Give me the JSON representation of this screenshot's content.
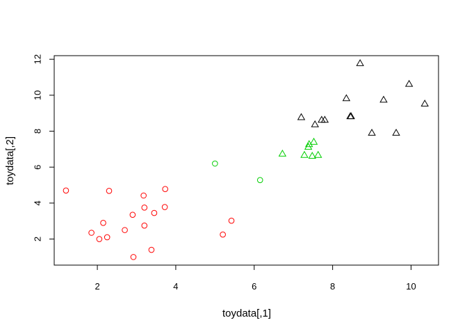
{
  "chart_data": {
    "type": "scatter",
    "title": "",
    "xlabel": "toydata[,1]",
    "ylabel": "toydata[,2]",
    "xlim": [
      0.9,
      10.7
    ],
    "ylim": [
      0.55,
      12.2
    ],
    "x_ticks": [
      2,
      4,
      6,
      8,
      10
    ],
    "y_ticks": [
      2,
      4,
      6,
      8,
      10,
      12
    ],
    "grid": false,
    "legend": "none",
    "series": [
      {
        "marker": "circle",
        "color": "#ff0000",
        "points": [
          [
            1.2,
            4.7
          ],
          [
            1.85,
            2.35
          ],
          [
            2.05,
            2.0
          ],
          [
            2.15,
            2.9
          ],
          [
            2.25,
            2.1
          ],
          [
            2.3,
            4.68
          ],
          [
            2.7,
            2.5
          ],
          [
            2.9,
            3.35
          ],
          [
            2.92,
            1.0
          ],
          [
            3.18,
            4.42
          ],
          [
            3.2,
            3.75
          ],
          [
            3.2,
            2.75
          ],
          [
            3.45,
            3.45
          ],
          [
            3.38,
            1.4
          ],
          [
            3.72,
            3.78
          ],
          [
            3.73,
            4.78
          ],
          [
            5.2,
            2.25
          ],
          [
            5.42,
            3.02
          ]
        ]
      },
      {
        "marker": "circle",
        "color": "#00cd00",
        "points": [
          [
            5.0,
            6.2
          ],
          [
            6.15,
            5.28
          ]
        ]
      },
      {
        "marker": "triangle",
        "color": "#00cd00",
        "points": [
          [
            6.72,
            6.72
          ],
          [
            7.28,
            6.65
          ],
          [
            7.38,
            7.1
          ],
          [
            7.4,
            7.25
          ],
          [
            7.48,
            6.6
          ],
          [
            7.52,
            7.38
          ],
          [
            7.63,
            6.65
          ]
        ]
      },
      {
        "marker": "triangle",
        "color": "#000000",
        "points": [
          [
            7.2,
            8.75
          ],
          [
            7.55,
            8.35
          ],
          [
            7.72,
            8.6
          ],
          [
            7.8,
            8.6
          ],
          [
            8.35,
            9.8
          ],
          [
            8.45,
            8.8
          ],
          [
            8.47,
            8.8
          ],
          [
            8.7,
            11.75
          ],
          [
            9.0,
            7.88
          ],
          [
            9.3,
            9.72
          ],
          [
            9.62,
            7.88
          ],
          [
            9.95,
            10.6
          ],
          [
            10.35,
            9.5
          ]
        ]
      }
    ]
  }
}
